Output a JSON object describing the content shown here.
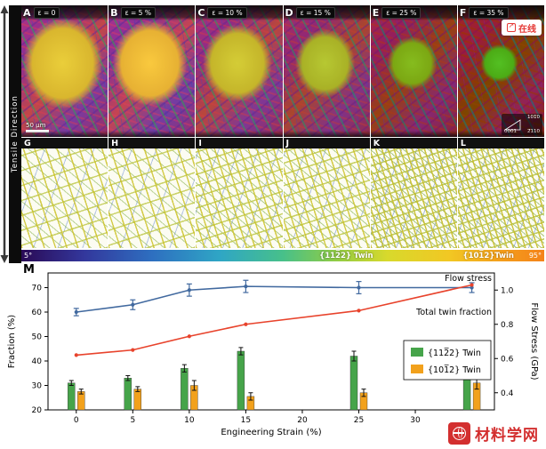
{
  "meta": {
    "tensile_direction_label": "Tensile Direction",
    "online_badge": "在线",
    "logo_text": "材料学网"
  },
  "panels_top": [
    {
      "letter": "A",
      "strain_label": "ε = 0",
      "scale_bar": "50 μm"
    },
    {
      "letter": "B",
      "strain_label": "ε = 5 %"
    },
    {
      "letter": "C",
      "strain_label": "ε = 10 %"
    },
    {
      "letter": "D",
      "strain_label": "ε = 15 %"
    },
    {
      "letter": "E",
      "strain_label": "ε = 25 %"
    },
    {
      "letter": "F",
      "strain_label": "ε = 35 %",
      "ipf_labels": [
        "0001",
        "101̅0",
        "2̅110"
      ]
    }
  ],
  "panels_bottom": [
    {
      "letter": "G"
    },
    {
      "letter": "H"
    },
    {
      "letter": "I"
    },
    {
      "letter": "J"
    },
    {
      "letter": "K"
    },
    {
      "letter": "L"
    }
  ],
  "colorbar": {
    "min_label": "5°",
    "max_label": "95°",
    "twin1_label": "{112̅2} Twin",
    "twin2_label": "{101̅2}Twin"
  },
  "chart_data": {
    "type": "bar",
    "panel_label": "M",
    "x": [
      0,
      5,
      10,
      15,
      25,
      35
    ],
    "xlabel": "Engineering Strain (%)",
    "xticks": [
      0,
      5,
      10,
      15,
      20,
      25,
      30
    ],
    "xlim": [
      -2.5,
      37
    ],
    "left_axis": {
      "label": "Fraction (%)",
      "ticks": [
        20,
        30,
        40,
        50,
        60,
        70
      ],
      "lim": [
        20,
        76
      ]
    },
    "right_axis": {
      "label": "Flow Stress (GPa)",
      "ticks": [
        0.4,
        0.6,
        0.8,
        1.0
      ],
      "lim": [
        0.3,
        1.1
      ]
    },
    "series": [
      {
        "name": "{112̅2} Twin",
        "type": "bar",
        "axis": "left",
        "color": "#46a44a",
        "values": [
          31,
          33,
          37,
          44,
          42,
          37.5
        ],
        "errors": [
          1,
          1,
          1.5,
          1.5,
          2,
          1.5
        ]
      },
      {
        "name": "{101̅2} Twin",
        "type": "bar",
        "axis": "left",
        "color": "#f2a11c",
        "values": [
          27.5,
          28.5,
          30,
          25.5,
          27,
          31
        ],
        "errors": [
          1,
          1,
          2,
          1.5,
          1.5,
          2.5
        ]
      },
      {
        "name": "Total twin fraction",
        "type": "line",
        "axis": "left",
        "color": "#41699f",
        "values": [
          60,
          63,
          69,
          70.5,
          70,
          70
        ],
        "errors": [
          1.5,
          2,
          2.5,
          2.5,
          2.5,
          2
        ]
      },
      {
        "name": "Flow stress",
        "type": "line",
        "axis": "right",
        "color": "#e8432c",
        "values": [
          0.62,
          0.65,
          0.73,
          0.8,
          0.88,
          1.03
        ]
      }
    ],
    "annotations": [
      "Flow stress",
      "Total twin fraction"
    ],
    "legend": [
      "{112̅2} Twin",
      "{101̅2} Twin"
    ],
    "grid": false,
    "legend_position": "center-right"
  }
}
